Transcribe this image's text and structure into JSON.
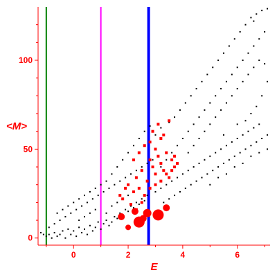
{
  "chart_data": {
    "type": "scatter",
    "title": "",
    "xlabel": "E",
    "ylabel": "<M>",
    "xlim": [
      -1.3,
      7.2
    ],
    "ylim": [
      -4,
      130
    ],
    "x_ticks": [
      0,
      2,
      4,
      6
    ],
    "y_ticks": [
      0,
      50,
      100
    ],
    "grid": false,
    "axis_color": "#ff0000",
    "vertical_lines": [
      {
        "x": -1.0,
        "color": "#008000"
      },
      {
        "x": 1.0,
        "color": "#ff00ff"
      },
      {
        "x": 2.75,
        "color": "#0000ff"
      }
    ],
    "series": [
      {
        "color": "#000000",
        "marker": "dot",
        "points": [
          [
            -1.2,
            3
          ],
          [
            -1.1,
            2
          ],
          [
            -1.0,
            1
          ],
          [
            -0.9,
            2
          ],
          [
            -0.8,
            0
          ],
          [
            -0.7,
            3
          ],
          [
            -0.6,
            1
          ],
          [
            -0.5,
            2
          ],
          [
            -0.4,
            4
          ],
          [
            -0.3,
            0
          ],
          [
            -0.2,
            5
          ],
          [
            -0.1,
            2
          ],
          [
            0.0,
            4
          ],
          [
            0.1,
            1
          ],
          [
            0.2,
            6
          ],
          [
            0.3,
            3
          ],
          [
            0.4,
            5
          ],
          [
            0.5,
            2
          ],
          [
            0.6,
            7
          ],
          [
            0.7,
            4
          ],
          [
            0.8,
            6
          ],
          [
            0.9,
            9
          ],
          [
            1.0,
            5
          ],
          [
            1.1,
            8
          ],
          [
            1.2,
            10
          ],
          [
            1.3,
            7
          ],
          [
            1.4,
            9
          ],
          [
            1.5,
            12
          ],
          [
            1.6,
            11
          ],
          [
            1.7,
            14
          ],
          [
            1.8,
            13
          ],
          [
            1.9,
            16
          ],
          [
            2.0,
            15
          ],
          [
            2.1,
            18
          ],
          [
            2.2,
            17
          ],
          [
            2.3,
            20
          ],
          [
            2.4,
            19
          ],
          [
            2.5,
            22
          ],
          [
            2.6,
            21
          ],
          [
            2.7,
            24
          ],
          [
            -0.9,
            6
          ],
          [
            -0.7,
            8
          ],
          [
            -0.5,
            10
          ],
          [
            -0.3,
            12
          ],
          [
            -0.1,
            14
          ],
          [
            0.1,
            16
          ],
          [
            0.3,
            18
          ],
          [
            0.5,
            20
          ],
          [
            0.7,
            22
          ],
          [
            0.9,
            24
          ],
          [
            1.1,
            26
          ],
          [
            1.3,
            28
          ],
          [
            1.5,
            30
          ],
          [
            1.7,
            32
          ],
          [
            1.9,
            34
          ],
          [
            2.1,
            36
          ],
          [
            2.3,
            38
          ],
          [
            2.5,
            40
          ],
          [
            2.7,
            42
          ],
          [
            2.9,
            44
          ],
          [
            -0.6,
            14
          ],
          [
            -0.4,
            16
          ],
          [
            -0.2,
            18
          ],
          [
            0.0,
            20
          ],
          [
            0.2,
            22
          ],
          [
            0.4,
            24
          ],
          [
            0.6,
            26
          ],
          [
            0.8,
            28
          ],
          [
            1.0,
            30
          ],
          [
            1.2,
            32
          ],
          [
            1.4,
            36
          ],
          [
            1.6,
            40
          ],
          [
            1.8,
            44
          ],
          [
            2.0,
            48
          ],
          [
            2.2,
            52
          ],
          [
            2.4,
            56
          ],
          [
            2.6,
            60
          ],
          [
            2.8,
            63
          ],
          [
            3.0,
            58
          ],
          [
            3.2,
            62
          ],
          [
            0.2,
            10
          ],
          [
            0.4,
            12
          ],
          [
            0.6,
            14
          ],
          [
            0.8,
            16
          ],
          [
            1.2,
            14
          ],
          [
            1.4,
            18
          ],
          [
            1.6,
            20
          ],
          [
            1.8,
            22
          ],
          [
            2.0,
            24
          ],
          [
            2.2,
            26
          ],
          [
            3.0,
            26
          ],
          [
            3.2,
            28
          ],
          [
            3.4,
            30
          ],
          [
            3.6,
            32
          ],
          [
            3.8,
            34
          ],
          [
            4.0,
            36
          ],
          [
            4.2,
            38
          ],
          [
            4.4,
            40
          ],
          [
            4.6,
            42
          ],
          [
            4.8,
            44
          ],
          [
            5.0,
            46
          ],
          [
            5.2,
            48
          ],
          [
            5.4,
            50
          ],
          [
            5.6,
            52
          ],
          [
            5.8,
            54
          ],
          [
            6.0,
            56
          ],
          [
            6.2,
            58
          ],
          [
            6.4,
            60
          ],
          [
            6.6,
            62
          ],
          [
            6.8,
            64
          ],
          [
            3.2,
            40
          ],
          [
            3.4,
            44
          ],
          [
            3.6,
            48
          ],
          [
            3.8,
            52
          ],
          [
            4.0,
            56
          ],
          [
            4.2,
            60
          ],
          [
            4.4,
            64
          ],
          [
            4.6,
            68
          ],
          [
            4.8,
            72
          ],
          [
            5.0,
            76
          ],
          [
            5.2,
            80
          ],
          [
            5.4,
            84
          ],
          [
            5.6,
            88
          ],
          [
            5.8,
            92
          ],
          [
            6.0,
            96
          ],
          [
            6.2,
            100
          ],
          [
            6.4,
            104
          ],
          [
            6.6,
            108
          ],
          [
            6.8,
            112
          ],
          [
            7.0,
            116
          ],
          [
            3.5,
            65
          ],
          [
            3.7,
            68
          ],
          [
            3.9,
            72
          ],
          [
            4.1,
            76
          ],
          [
            4.3,
            80
          ],
          [
            4.5,
            84
          ],
          [
            4.7,
            88
          ],
          [
            4.9,
            92
          ],
          [
            5.1,
            96
          ],
          [
            5.3,
            100
          ],
          [
            5.5,
            104
          ],
          [
            5.7,
            108
          ],
          [
            5.9,
            112
          ],
          [
            6.1,
            116
          ],
          [
            6.3,
            120
          ],
          [
            6.5,
            124
          ],
          [
            6.7,
            126
          ],
          [
            6.9,
            128
          ],
          [
            7.1,
            129
          ],
          [
            6.6,
            122
          ],
          [
            3.3,
            20
          ],
          [
            3.5,
            22
          ],
          [
            3.7,
            24
          ],
          [
            3.9,
            26
          ],
          [
            4.1,
            28
          ],
          [
            4.3,
            30
          ],
          [
            4.5,
            32
          ],
          [
            4.7,
            34
          ],
          [
            4.9,
            36
          ],
          [
            5.1,
            38
          ],
          [
            5.3,
            40
          ],
          [
            5.5,
            42
          ],
          [
            5.7,
            44
          ],
          [
            5.9,
            46
          ],
          [
            6.1,
            48
          ],
          [
            6.3,
            50
          ],
          [
            6.5,
            52
          ],
          [
            6.7,
            54
          ],
          [
            6.9,
            56
          ],
          [
            7.1,
            58
          ],
          [
            4.2,
            48
          ],
          [
            4.4,
            52
          ],
          [
            4.6,
            56
          ],
          [
            4.8,
            60
          ],
          [
            5.0,
            64
          ],
          [
            5.2,
            68
          ],
          [
            5.4,
            72
          ],
          [
            5.6,
            76
          ],
          [
            5.8,
            80
          ],
          [
            6.0,
            84
          ],
          [
            6.2,
            88
          ],
          [
            6.4,
            92
          ],
          [
            6.6,
            96
          ],
          [
            6.8,
            100
          ],
          [
            7.0,
            98
          ],
          [
            7.1,
            88
          ],
          [
            6.9,
            80
          ],
          [
            6.7,
            74
          ],
          [
            6.5,
            70
          ],
          [
            6.3,
            66
          ],
          [
            5.0,
            30
          ],
          [
            5.3,
            34
          ],
          [
            5.6,
            36
          ],
          [
            5.9,
            40
          ],
          [
            6.2,
            42
          ],
          [
            6.5,
            46
          ],
          [
            6.8,
            48
          ],
          [
            7.1,
            50
          ],
          [
            6.0,
            64
          ],
          [
            5.5,
            58
          ]
        ]
      },
      {
        "color": "#ff0000",
        "marker": "square",
        "points": [
          [
            1.8,
            22
          ],
          [
            2.0,
            30
          ],
          [
            2.1,
            19
          ],
          [
            2.2,
            26
          ],
          [
            2.3,
            34
          ],
          [
            2.4,
            28
          ],
          [
            2.5,
            38
          ],
          [
            2.6,
            24
          ],
          [
            2.7,
            32
          ],
          [
            2.8,
            44
          ],
          [
            2.9,
            40
          ],
          [
            3.0,
            36
          ],
          [
            3.1,
            46
          ],
          [
            3.2,
            42
          ],
          [
            3.3,
            38
          ],
          [
            3.4,
            48
          ],
          [
            3.5,
            34
          ],
          [
            3.6,
            44
          ],
          [
            3.7,
            40
          ],
          [
            2.9,
            60
          ],
          [
            3.1,
            64
          ],
          [
            3.3,
            58
          ],
          [
            3.5,
            66
          ],
          [
            2.3,
            16
          ],
          [
            2.5,
            20
          ],
          [
            2.8,
            28
          ],
          [
            3.0,
            30
          ],
          [
            3.2,
            32
          ],
          [
            3.4,
            36
          ],
          [
            3.6,
            38
          ],
          [
            2.6,
            52
          ],
          [
            2.8,
            54
          ],
          [
            3.0,
            50
          ],
          [
            3.2,
            56
          ],
          [
            2.2,
            44
          ],
          [
            2.4,
            48
          ],
          [
            1.7,
            24
          ],
          [
            1.9,
            28
          ],
          [
            3.7,
            46
          ],
          [
            3.8,
            42
          ]
        ]
      },
      {
        "color": "#ff0000",
        "marker": "circle",
        "points": [
          [
            2.4,
            9
          ],
          [
            3.1,
            13
          ],
          [
            2.7,
            14
          ],
          [
            2.0,
            6
          ],
          [
            3.4,
            17
          ],
          [
            2.55,
            11
          ],
          [
            1.75,
            12
          ],
          [
            2.25,
            15
          ]
        ]
      }
    ]
  }
}
